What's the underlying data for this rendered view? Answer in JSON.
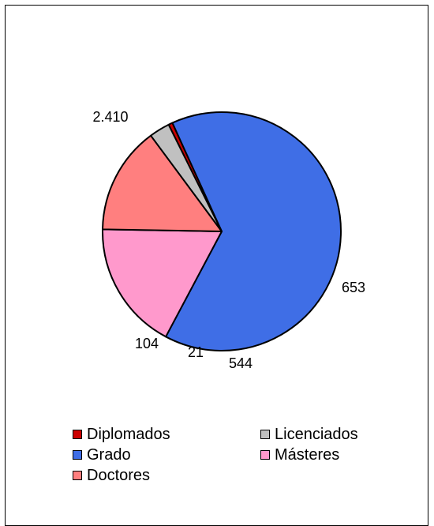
{
  "chart_data": {
    "type": "pie",
    "title": "",
    "slices": [
      {
        "label": "Diplomados",
        "value": 21,
        "value_label": "21",
        "color": "#cc0000"
      },
      {
        "label": "Grado",
        "value": 2410,
        "value_label": "2.410",
        "color": "#3f6ee6"
      },
      {
        "label": "Másteres",
        "value": 653,
        "value_label": "653",
        "color": "#ff99cc"
      },
      {
        "label": "Doctores",
        "value": 544,
        "value_label": "544",
        "color": "#ff7f7f"
      },
      {
        "label": "Licenciados",
        "value": 104,
        "value_label": "104",
        "color": "#c0c0c0"
      }
    ],
    "legend": {
      "placement": "bottom",
      "items": [
        {
          "label": "Diplomados",
          "color": "#cc0000"
        },
        {
          "label": "Licenciados",
          "color": "#c0c0c0"
        },
        {
          "label": "Grado",
          "color": "#3f6ee6"
        },
        {
          "label": "Másteres",
          "color": "#ff99cc"
        },
        {
          "label": "Doctores",
          "color": "#ff7f7f"
        }
      ]
    }
  }
}
